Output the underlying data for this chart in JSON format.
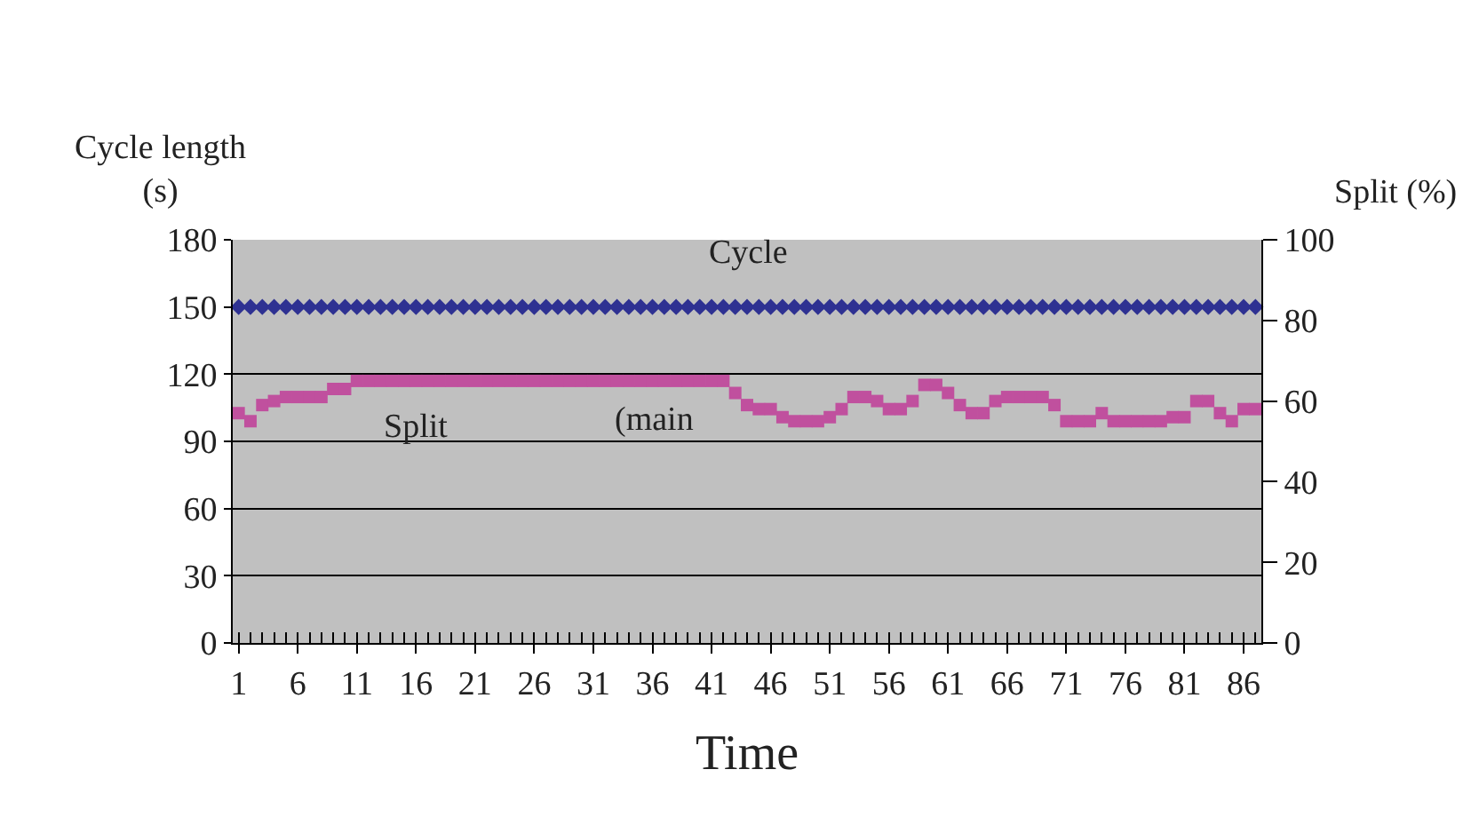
{
  "chart_data": {
    "type": "scatter",
    "x": [
      1,
      2,
      3,
      4,
      5,
      6,
      7,
      8,
      9,
      10,
      11,
      12,
      13,
      14,
      15,
      16,
      17,
      18,
      19,
      20,
      21,
      22,
      23,
      24,
      25,
      26,
      27,
      28,
      29,
      30,
      31,
      32,
      33,
      34,
      35,
      36,
      37,
      38,
      39,
      40,
      41,
      42,
      43,
      44,
      45,
      46,
      47,
      48,
      49,
      50,
      51,
      52,
      53,
      54,
      55,
      56,
      57,
      58,
      59,
      60,
      61,
      62,
      63,
      64,
      65,
      66,
      67,
      68,
      69,
      70,
      71,
      72,
      73,
      74,
      75,
      76,
      77,
      78,
      79,
      80,
      81,
      82,
      83,
      84,
      85,
      86,
      87
    ],
    "series": [
      {
        "name": "Cycle",
        "color": "#2e3192",
        "marker": "diamond",
        "values": [
          150,
          150,
          150,
          150,
          150,
          150,
          150,
          150,
          150,
          150,
          150,
          150,
          150,
          150,
          150,
          150,
          150,
          150,
          150,
          150,
          150,
          150,
          150,
          150,
          150,
          150,
          150,
          150,
          150,
          150,
          150,
          150,
          150,
          150,
          150,
          150,
          150,
          150,
          150,
          150,
          150,
          150,
          150,
          150,
          150,
          150,
          150,
          150,
          150,
          150,
          150,
          150,
          150,
          150,
          150,
          150,
          150,
          150,
          150,
          150,
          150,
          150,
          150,
          150,
          150,
          150,
          150,
          150,
          150,
          150,
          150,
          150,
          150,
          150,
          150,
          150,
          150,
          150,
          150,
          150,
          150,
          150,
          150,
          150,
          150,
          150,
          150
        ]
      },
      {
        "name": "Split",
        "color": "#c0509e",
        "marker": "square",
        "axis": "y2",
        "values": [
          57,
          55,
          59,
          60,
          61,
          61,
          61,
          61,
          63,
          63,
          65,
          65,
          65,
          65,
          65,
          65,
          65,
          65,
          65,
          65,
          65,
          65,
          65,
          65,
          65,
          65,
          65,
          65,
          65,
          65,
          65,
          65,
          65,
          65,
          65,
          65,
          65,
          65,
          65,
          65,
          65,
          65,
          62,
          59,
          58,
          58,
          56,
          55,
          55,
          55,
          56,
          58,
          61,
          61,
          60,
          58,
          58,
          60,
          64,
          64,
          62,
          59,
          57,
          57,
          60,
          61,
          61,
          61,
          61,
          59,
          55,
          55,
          55,
          57,
          55,
          55,
          55,
          55,
          55,
          56,
          56,
          60,
          60,
          57,
          55,
          58,
          58
        ]
      }
    ],
    "xlabel": "Time",
    "ylabel": "Cycle length\n(s)",
    "y2label": "Split (%)",
    "xlim": [
      0.5,
      87.5
    ],
    "xticks": [
      1,
      6,
      11,
      16,
      21,
      26,
      31,
      36,
      41,
      46,
      51,
      56,
      61,
      66,
      71,
      76,
      81,
      86
    ],
    "ylim": [
      0,
      180
    ],
    "yticks": [
      0,
      30,
      60,
      90,
      120,
      150,
      180
    ],
    "y2lim": [
      0,
      100
    ],
    "y2ticks": [
      0,
      20,
      40,
      60,
      80,
      100
    ],
    "grid": "y",
    "annotations": [
      "(main"
    ]
  }
}
